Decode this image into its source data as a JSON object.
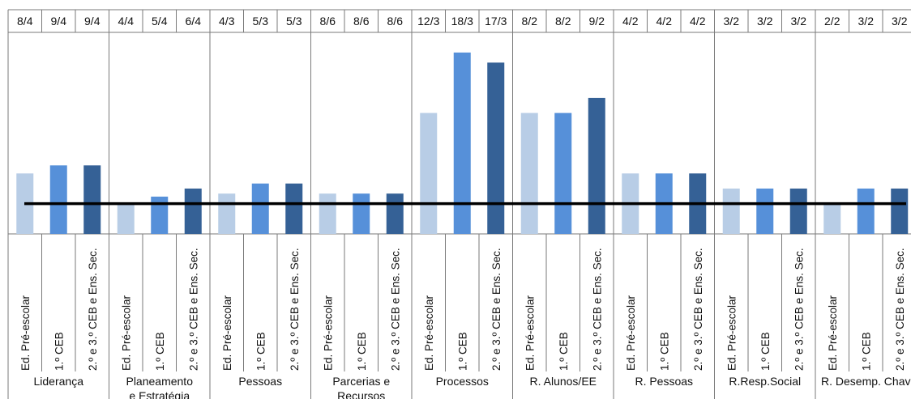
{
  "chart_data": {
    "type": "bar",
    "title": "",
    "xlabel": "",
    "ylabel": "",
    "ylim": [
      0,
      20
    ],
    "reference_line": 3,
    "series_colors": [
      "#b8cde6",
      "#5690d9",
      "#356196"
    ],
    "reference_color": "#000000",
    "sub_categories": [
      "Ed. Pré-escolar",
      "1.º CEB",
      "2.º e 3.º CEB e Ens. Sec."
    ],
    "groups": [
      {
        "label": "Liderança",
        "label_cont": "",
        "values": [
          6,
          6.8,
          6.8
        ],
        "top_labels": [
          "8/4",
          "9/4",
          "9/4"
        ]
      },
      {
        "label": "Planeamento",
        "label_cont": "e Estratégia",
        "values": [
          3,
          3.7,
          4.5
        ],
        "top_labels": [
          "4/4",
          "5/4",
          "6/4"
        ]
      },
      {
        "label": "Pessoas",
        "label_cont": "",
        "values": [
          4,
          5,
          5
        ],
        "top_labels": [
          "4/3",
          "5/3",
          "5/3"
        ]
      },
      {
        "label": "Parcerias e",
        "label_cont": "Recursos",
        "values": [
          4,
          4,
          4
        ],
        "top_labels": [
          "8/6",
          "8/6",
          "8/6"
        ]
      },
      {
        "label": "Processos",
        "label_cont": "",
        "values": [
          12,
          18,
          17
        ],
        "top_labels": [
          "12/3",
          "18/3",
          "17/3"
        ]
      },
      {
        "label": "R. Alunos/EE",
        "label_cont": "",
        "values": [
          12,
          12,
          13.5
        ],
        "top_labels": [
          "8/2",
          "8/2",
          "9/2"
        ]
      },
      {
        "label": "R. Pessoas",
        "label_cont": "",
        "values": [
          6,
          6,
          6
        ],
        "top_labels": [
          "4/2",
          "4/2",
          "4/2"
        ]
      },
      {
        "label": "R.Resp.Social",
        "label_cont": "",
        "values": [
          4.5,
          4.5,
          4.5
        ],
        "top_labels": [
          "3/2",
          "3/2",
          "3/2"
        ]
      },
      {
        "label": "R. Desemp. Chav",
        "label_cont": "",
        "values": [
          3,
          4.5,
          4.5
        ],
        "top_labels": [
          "2/2",
          "3/2",
          "3/2"
        ]
      }
    ]
  }
}
